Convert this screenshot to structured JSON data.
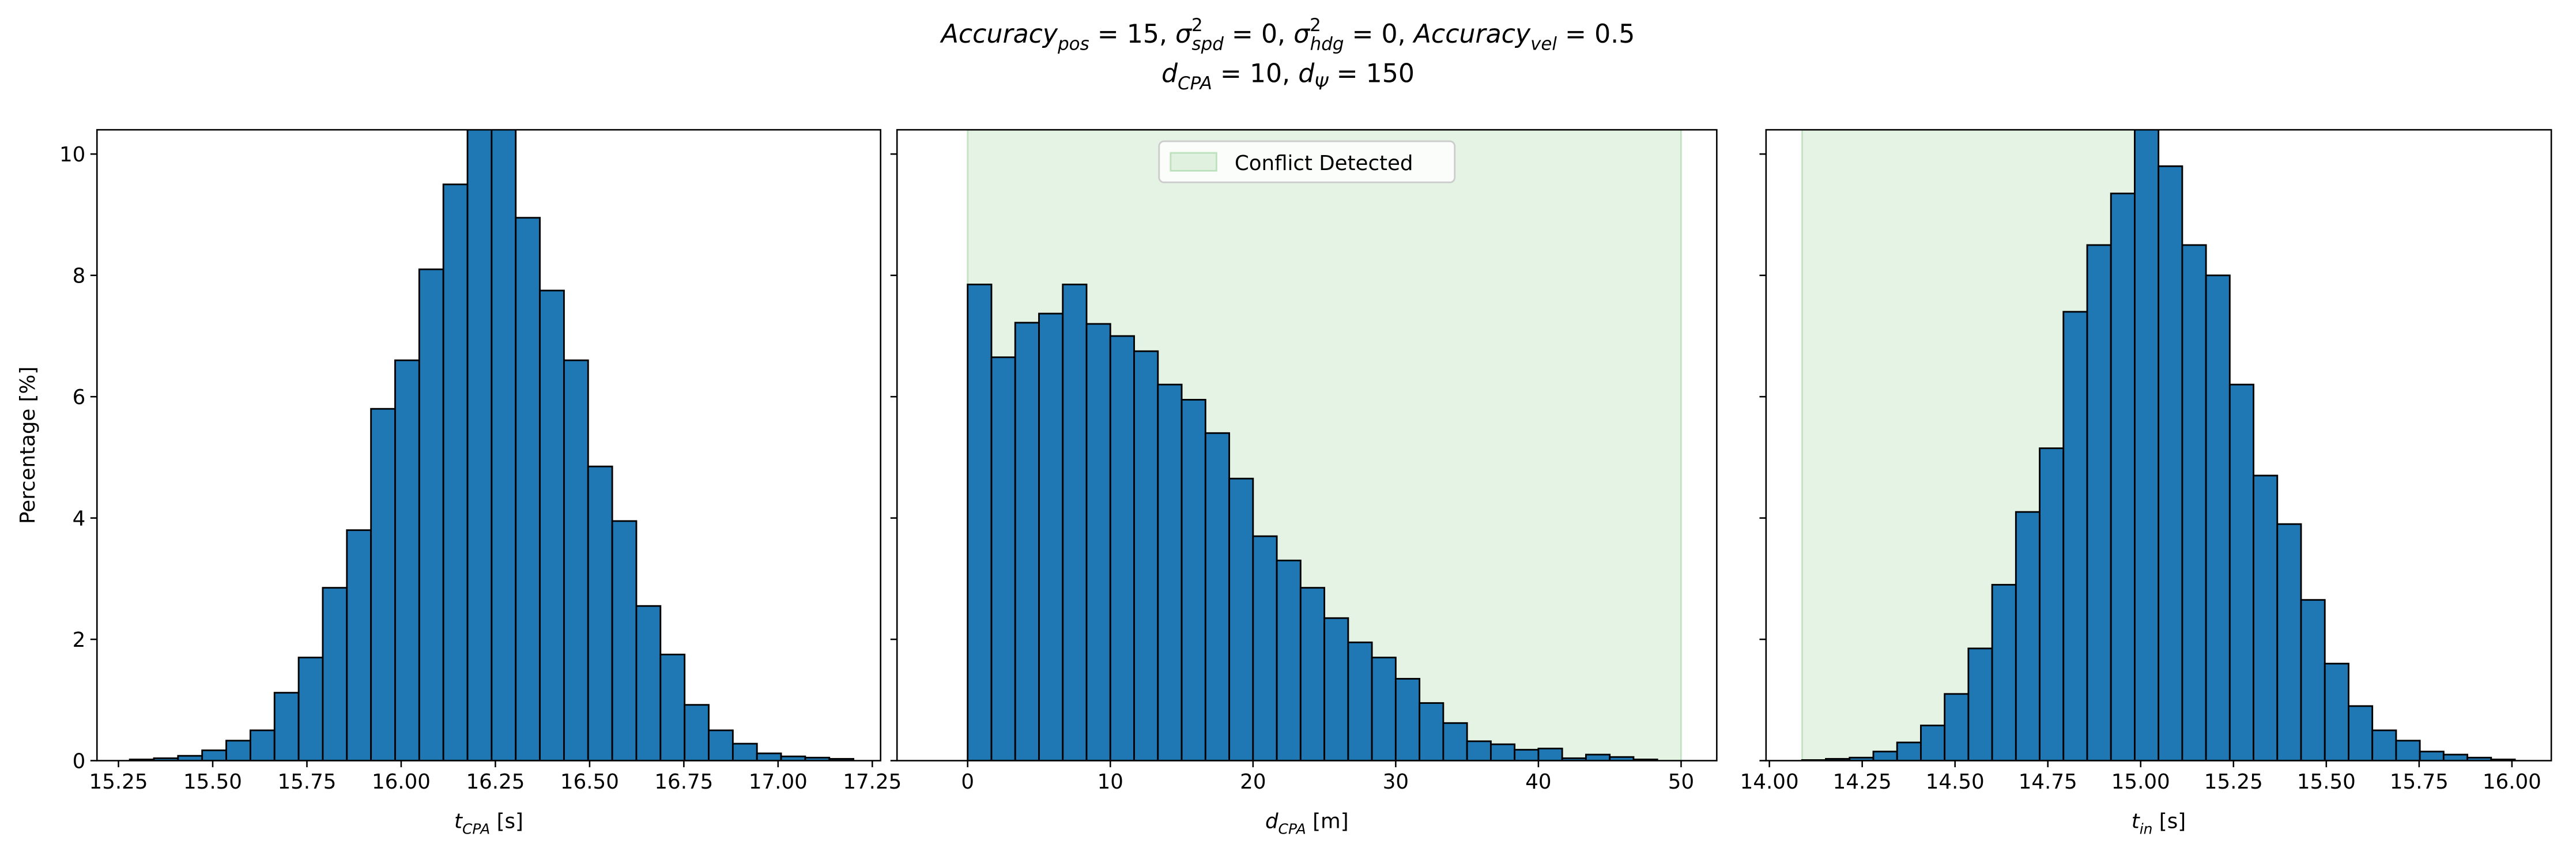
{
  "title": [
    [
      {
        "text": "Accuracy",
        "italic": true,
        "sub": "pos"
      },
      {
        "text": " = 15, "
      },
      {
        "text": "σ",
        "italic": true,
        "sup": "2",
        "sub": "spd"
      },
      {
        "text": " = 0, "
      },
      {
        "text": "σ",
        "italic": true,
        "sup": "2",
        "sub": "hdg"
      },
      {
        "text": " = 0, "
      },
      {
        "text": "Accuracy",
        "italic": true,
        "sub": "vel"
      },
      {
        "text": " = 0.5"
      }
    ],
    [
      {
        "text": "d",
        "italic": true,
        "sub": "CPA"
      },
      {
        "text": " = 10, "
      },
      {
        "text": "d",
        "italic": true,
        "sub": "Ψ"
      },
      {
        "text": " = 150"
      }
    ]
  ],
  "chart_data": [
    {
      "type": "histogram",
      "color": "#1f77b4",
      "edgecolor": "#000000",
      "ylabel": "Percentage [%]",
      "show_ytick_labels": true,
      "xlabel": [
        {
          "text": "t",
          "italic": true,
          "sub": "CPA"
        },
        {
          "text": " [s]"
        }
      ],
      "bins": [
        15.28,
        15.344,
        15.408,
        15.472,
        15.536,
        15.6,
        15.664,
        15.728,
        15.792,
        15.856,
        15.92,
        15.984,
        16.048,
        16.112,
        16.176,
        16.24,
        16.304,
        16.368,
        16.432,
        16.496,
        16.56,
        16.624,
        16.688,
        16.752,
        16.816,
        16.88,
        16.944,
        17.008,
        17.072,
        17.136,
        17.2
      ],
      "values": [
        0.02,
        0.04,
        0.08,
        0.17,
        0.33,
        0.5,
        1.12,
        1.7,
        2.85,
        3.8,
        5.8,
        6.6,
        8.1,
        9.5,
        11.2,
        11.0,
        8.95,
        7.75,
        6.6,
        4.85,
        3.95,
        2.55,
        1.75,
        0.92,
        0.5,
        0.28,
        0.12,
        0.07,
        0.05,
        0.03
      ],
      "xlim": [
        15.193,
        17.272
      ],
      "ylim": [
        0,
        10.4
      ],
      "xticks": [
        15.25,
        {
          "value": 15.5,
          "label": "15.50"
        },
        15.75,
        {
          "value": 16,
          "label": "16.00"
        },
        16.25,
        {
          "value": 16.5,
          "label": "16.50"
        },
        16.75,
        {
          "value": 17,
          "label": "17.00"
        },
        17.25
      ],
      "yticks": [
        0,
        2,
        4,
        6,
        8,
        10
      ]
    },
    {
      "type": "histogram",
      "color": "#1f77b4",
      "edgecolor": "#000000",
      "show_ytick_labels": false,
      "xlabel": [
        {
          "text": "d",
          "italic": true,
          "sub": "CPA"
        },
        {
          "text": " [m]"
        }
      ],
      "span": {
        "range": [
          0,
          50
        ],
        "color": "#2ca02c",
        "alpha": 0.12,
        "name": "Conflict Detected"
      },
      "legend": "upper center",
      "bins": [
        0,
        1.667,
        3.333,
        5,
        6.667,
        8.333,
        10,
        11.667,
        13.333,
        15,
        16.667,
        18.333,
        20,
        21.667,
        23.333,
        25,
        26.667,
        28.333,
        30,
        31.667,
        33.333,
        35,
        36.667,
        38.333,
        40,
        41.667,
        43.333,
        45,
        46.667,
        48.333,
        50
      ],
      "values": [
        7.85,
        6.65,
        7.22,
        7.37,
        7.85,
        7.2,
        7.0,
        6.75,
        6.2,
        5.95,
        5.4,
        4.65,
        3.7,
        3.3,
        2.85,
        2.35,
        1.95,
        1.7,
        1.35,
        0.95,
        0.62,
        0.32,
        0.27,
        0.18,
        0.2,
        0.04,
        0.1,
        0.06,
        0.02,
        0
      ],
      "xlim": [
        -4.95,
        52.5
      ],
      "ylim": [
        0,
        10.4
      ],
      "xticks": [
        0,
        10,
        20,
        30,
        40,
        50
      ],
      "yticks": [
        0,
        2,
        4,
        6,
        8,
        10
      ]
    },
    {
      "type": "histogram",
      "color": "#1f77b4",
      "edgecolor": "#000000",
      "show_ytick_labels": false,
      "xlabel": [
        {
          "text": "t",
          "italic": true,
          "sub": "in"
        },
        {
          "text": " [s]"
        }
      ],
      "span": {
        "range": [
          14.088,
          15.0
        ],
        "color": "#2ca02c",
        "alpha": 0.12
      },
      "bins": [
        14.088,
        14.152,
        14.216,
        14.28,
        14.344,
        14.408,
        14.472,
        14.536,
        14.6,
        14.664,
        14.728,
        14.792,
        14.856,
        14.92,
        14.984,
        15.048,
        15.112,
        15.176,
        15.24,
        15.304,
        15.368,
        15.432,
        15.496,
        15.56,
        15.624,
        15.688,
        15.752,
        15.816,
        15.88,
        15.944,
        16.008
      ],
      "values": [
        0.01,
        0.03,
        0.05,
        0.15,
        0.3,
        0.58,
        1.1,
        1.85,
        2.9,
        4.1,
        5.15,
        7.4,
        8.5,
        9.35,
        10.6,
        9.8,
        8.5,
        8.0,
        6.2,
        4.7,
        3.9,
        2.65,
        1.6,
        0.9,
        0.5,
        0.33,
        0.15,
        0.1,
        0.05,
        0.02
      ],
      "xlim": [
        13.991,
        16.106
      ],
      "ylim": [
        0,
        10.4
      ],
      "xticks": [
        {
          "value": 14,
          "label": "14.00"
        },
        14.25,
        {
          "value": 14.5,
          "label": "14.50"
        },
        14.75,
        {
          "value": 15,
          "label": "15.00"
        },
        15.25,
        {
          "value": 15.5,
          "label": "15.50"
        },
        15.75,
        {
          "value": 16,
          "label": "16.00"
        }
      ],
      "yticks": [
        0,
        2,
        4,
        6,
        8,
        10
      ]
    }
  ]
}
